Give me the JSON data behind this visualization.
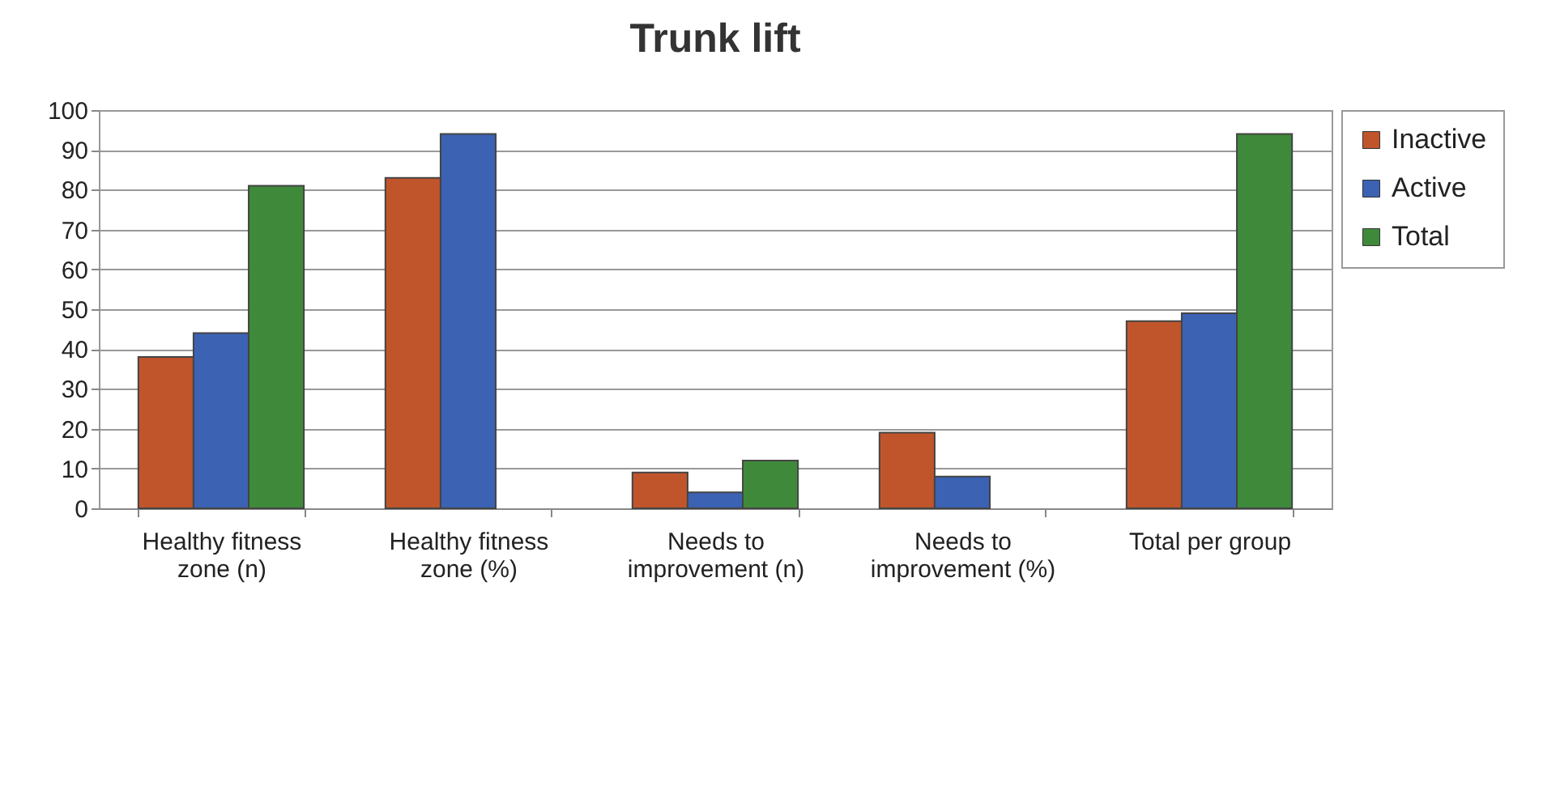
{
  "chart_data": {
    "type": "bar",
    "title": "Trunk lift",
    "categories": [
      "Healthy fitness zone (n)",
      "Healthy fitness zone (%)",
      "Needs to improvement (n)",
      "Needs to improvement (%)",
      "Total per group"
    ],
    "series": [
      {
        "name": "Inactive",
        "color": "#c0552c",
        "values": [
          38,
          83,
          9,
          19,
          47
        ]
      },
      {
        "name": "Active",
        "color": "#3b62b3",
        "values": [
          44,
          94,
          4,
          8,
          49
        ]
      },
      {
        "name": "Total",
        "color": "#3f8a3a",
        "values": [
          81,
          null,
          12,
          null,
          94
        ]
      }
    ],
    "ylim": [
      0,
      100
    ],
    "yticks": [
      0,
      10,
      20,
      30,
      40,
      50,
      60,
      70,
      80,
      90,
      100
    ],
    "grid": "y",
    "legend": "right"
  }
}
